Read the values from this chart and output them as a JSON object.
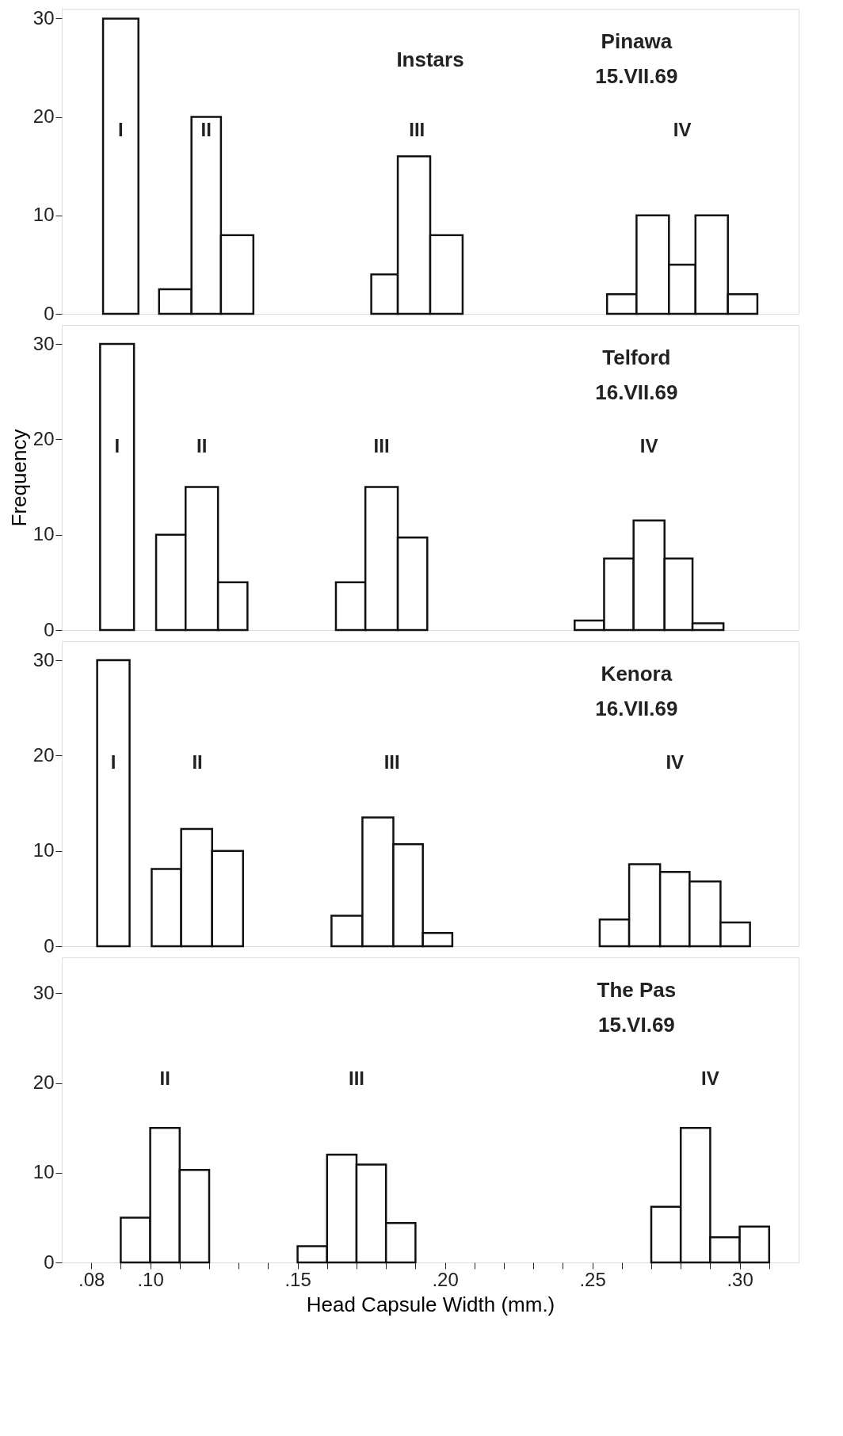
{
  "chart_data": [
    {
      "type": "histogram",
      "color": "#ffffff",
      "xlim": [
        0.07,
        0.32
      ],
      "ylim": [
        0,
        31
      ],
      "yticks": [
        0,
        10,
        20,
        30
      ],
      "tick_labels": "y",
      "grid": false,
      "bins": [
        0.084,
        0.096,
        0.103,
        0.114,
        0.124,
        0.135,
        0.175,
        0.184,
        0.195,
        0.206,
        0.255,
        0.265,
        0.276,
        0.285,
        0.296,
        0.306
      ],
      "values": [
        30,
        null,
        2.5,
        20,
        8,
        null,
        4,
        16,
        8,
        null,
        2,
        10,
        5,
        10,
        2
      ],
      "annotations": [
        "Instars",
        "Pinawa",
        "15.VII.69",
        "I",
        "II",
        "III",
        "IV"
      ]
    },
    {
      "type": "histogram",
      "color": "#ffffff",
      "xlim": [
        0.07,
        0.32
      ],
      "ylim": [
        0,
        32
      ],
      "yticks": [
        0,
        10,
        20,
        30
      ],
      "tick_labels": "y",
      "grid": false,
      "ylabel": "Frequency",
      "bins": [
        0.083,
        0.0945,
        0.102,
        0.112,
        0.123,
        0.133,
        0.163,
        0.173,
        0.184,
        0.194,
        0.244,
        0.254,
        0.264,
        0.2745,
        0.284,
        0.2945
      ],
      "values": [
        30,
        null,
        10,
        15,
        5,
        null,
        5,
        15,
        9.7,
        null,
        1,
        7.5,
        11.5,
        7.5,
        0.7
      ],
      "annotations": [
        "Telford",
        "16.VII.69",
        "I",
        "II",
        "III",
        "IV"
      ]
    },
    {
      "type": "histogram",
      "color": "#ffffff",
      "xlim": [
        0.07,
        0.32
      ],
      "ylim": [
        0,
        32
      ],
      "yticks": [
        0,
        10,
        20,
        30
      ],
      "tick_labels": "y",
      "grid": false,
      "bins": [
        0.082,
        0.093,
        0.1005,
        0.1105,
        0.121,
        0.1315,
        0.1615,
        0.172,
        0.1825,
        0.1925,
        0.2025,
        0.2525,
        0.2625,
        0.273,
        0.283,
        0.2935,
        0.3035
      ],
      "values": [
        30,
        null,
        8.1,
        12.3,
        10,
        null,
        3.2,
        13.5,
        10.7,
        1.4,
        null,
        2.8,
        8.6,
        7.8,
        6.8,
        2.5
      ],
      "annotations": [
        "Kenora",
        "16.VII.69",
        "I",
        "II",
        "III",
        "IV"
      ]
    },
    {
      "type": "histogram",
      "color": "#ffffff",
      "xlim": [
        0.07,
        0.32
      ],
      "ylim": [
        0,
        34
      ],
      "yticks": [
        0,
        10,
        20,
        30
      ],
      "grid": false,
      "xlabel": "Head Capsule Width (mm.)",
      "xticks": [
        {
          "value": 0.08,
          "label": ".08"
        },
        {
          "value": 0.09,
          "label": null
        },
        {
          "value": 0.1,
          "label": ".10"
        },
        {
          "value": 0.11,
          "label": null
        },
        {
          "value": 0.12,
          "label": null
        },
        {
          "value": 0.13,
          "label": null
        },
        {
          "value": 0.14,
          "label": null
        },
        {
          "value": 0.15,
          "label": ".15"
        },
        {
          "value": 0.16,
          "label": null
        },
        {
          "value": 0.17,
          "label": null
        },
        {
          "value": 0.18,
          "label": null
        },
        {
          "value": 0.19,
          "label": null
        },
        {
          "value": 0.2,
          "label": ".20"
        },
        {
          "value": 0.21,
          "label": null
        },
        {
          "value": 0.22,
          "label": null
        },
        {
          "value": 0.23,
          "label": null
        },
        {
          "value": 0.24,
          "label": null
        },
        {
          "value": 0.25,
          "label": ".25"
        },
        {
          "value": 0.26,
          "label": null
        },
        {
          "value": 0.27,
          "label": null
        },
        {
          "value": 0.28,
          "label": null
        },
        {
          "value": 0.29,
          "label": null
        },
        {
          "value": 0.3,
          "label": ".30"
        },
        {
          "value": 0.31,
          "label": null
        }
      ],
      "bins": [
        0.09,
        0.1,
        0.11,
        0.12,
        0.15,
        0.16,
        0.17,
        0.18,
        0.19,
        0.27,
        0.28,
        0.29,
        0.3,
        0.31
      ],
      "values": [
        5,
        15,
        10.3,
        null,
        1.8,
        12,
        10.9,
        4.4,
        null,
        6.2,
        15,
        2.8,
        4
      ],
      "annotations": [
        "The Pas",
        "15.VI.69",
        "II",
        "III",
        "IV"
      ]
    }
  ]
}
